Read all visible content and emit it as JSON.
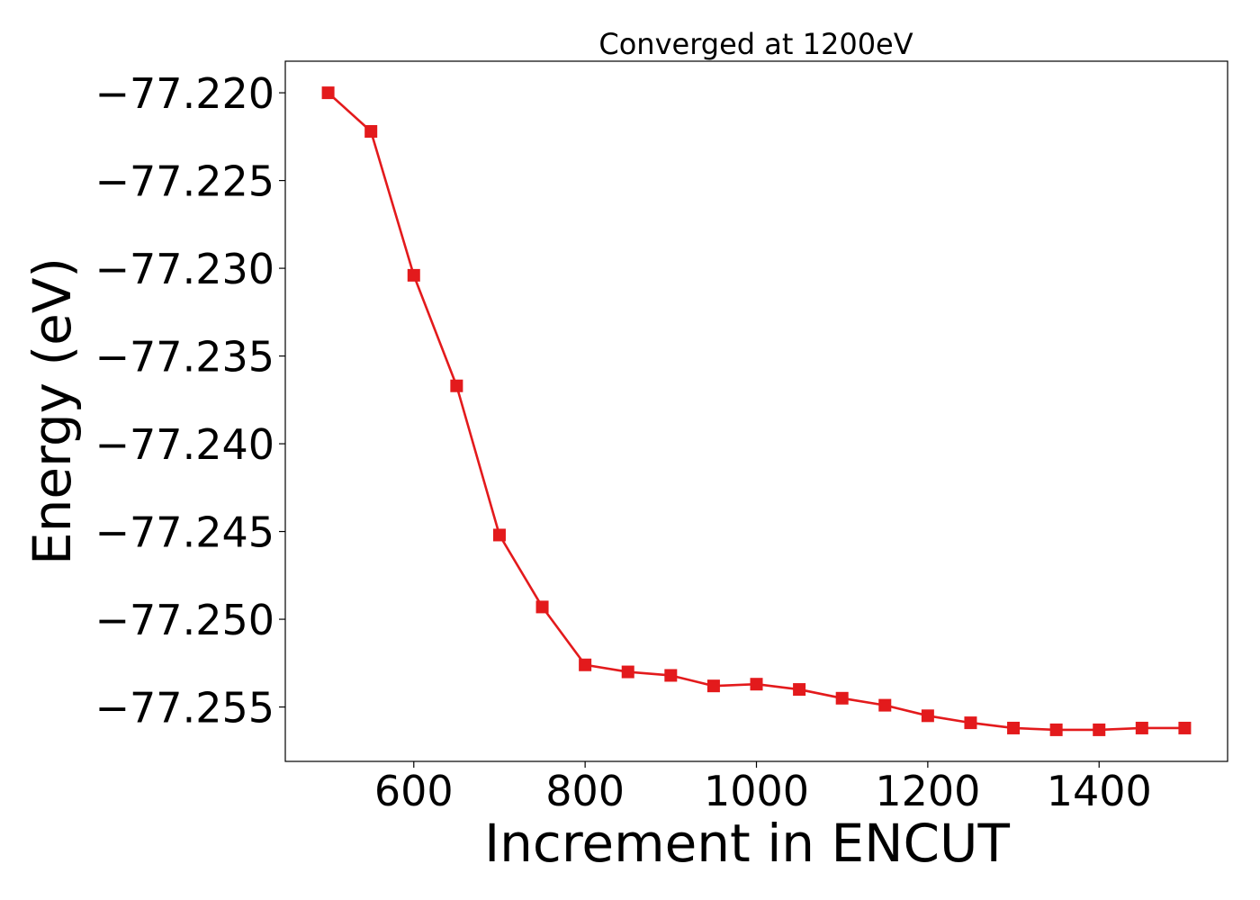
{
  "chart_data": {
    "type": "line",
    "title": "Converged at 1200eV",
    "xlabel": "Increment in ENCUT",
    "ylabel": "Energy (eV)",
    "xlim": [
      450,
      1550
    ],
    "ylim": [
      -77.2581,
      -77.2182
    ],
    "xticks": [
      600,
      800,
      1000,
      1200,
      1400
    ],
    "yticks": [
      -77.22,
      -77.225,
      -77.23,
      -77.235,
      -77.24,
      -77.245,
      -77.25,
      -77.255
    ],
    "ytick_labels": [
      "−77.220",
      "−77.225",
      "−77.230",
      "−77.235",
      "−77.240",
      "−77.245",
      "−77.250",
      "−77.255"
    ],
    "grid": false,
    "series": [
      {
        "color": "#e31a1c",
        "marker": "square",
        "x": [
          500,
          550,
          600,
          650,
          700,
          750,
          800,
          850,
          900,
          950,
          1000,
          1050,
          1100,
          1150,
          1200,
          1250,
          1300,
          1350,
          1400,
          1450,
          1500
        ],
        "y": [
          -77.22,
          -77.2222,
          -77.2304,
          -77.2367,
          -77.2452,
          -77.2493,
          -77.2526,
          -77.253,
          -77.2532,
          -77.2538,
          -77.2537,
          -77.254,
          -77.2545,
          -77.2549,
          -77.2555,
          -77.2559,
          -77.2562,
          -77.2563,
          -77.2563,
          -77.2562,
          -77.2562
        ]
      }
    ]
  }
}
